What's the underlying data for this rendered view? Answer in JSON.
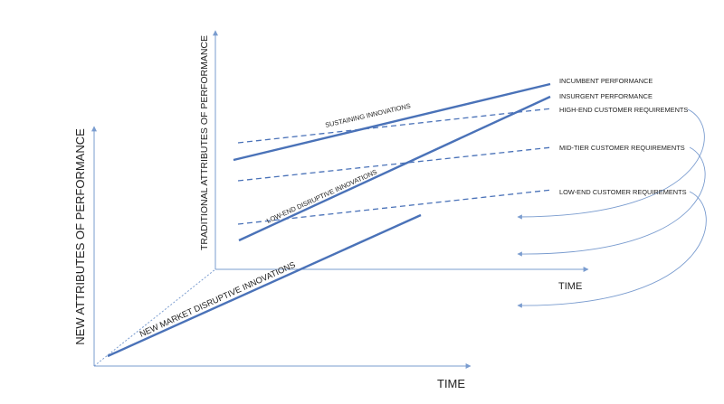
{
  "colors": {
    "axis": "#7a9ccf",
    "series_line": "#4a72b8",
    "dashed_line": "#4a72b8",
    "connector": "#7a9ccf",
    "text": "#222222"
  },
  "labels": {
    "incumbent_performance": "INCUMBENT PERFORMANCE",
    "insurgent_performance": "INSURGENT PERFORMANCE",
    "high_end_requirements": "HIGH-END CUSTOMER REQUIREMENTS",
    "mid_tier_requirements": "MID-TIER CUSTOMER REQUIREMENTS",
    "low_end_requirements": "LOW-END CUSTOMER REQUIREMENTS",
    "sustaining_innovations": "SUSTAINING INNOVATIONS",
    "low_end_disruptive": "LOW-END DISRUPTIVE INNOVATIONS",
    "new_market_disruptive": "NEW MARKET DISRUPTIVE INNOVATIONS"
  },
  "axes": {
    "front_y_title": "NEW ATTRIBUTES OF PERFORMANCE",
    "front_x_title": "TIME",
    "back_y_title": "TRADITIONAL ATTRIBUTES OF PERFORMANCE",
    "back_x_title": "TIME"
  }
}
